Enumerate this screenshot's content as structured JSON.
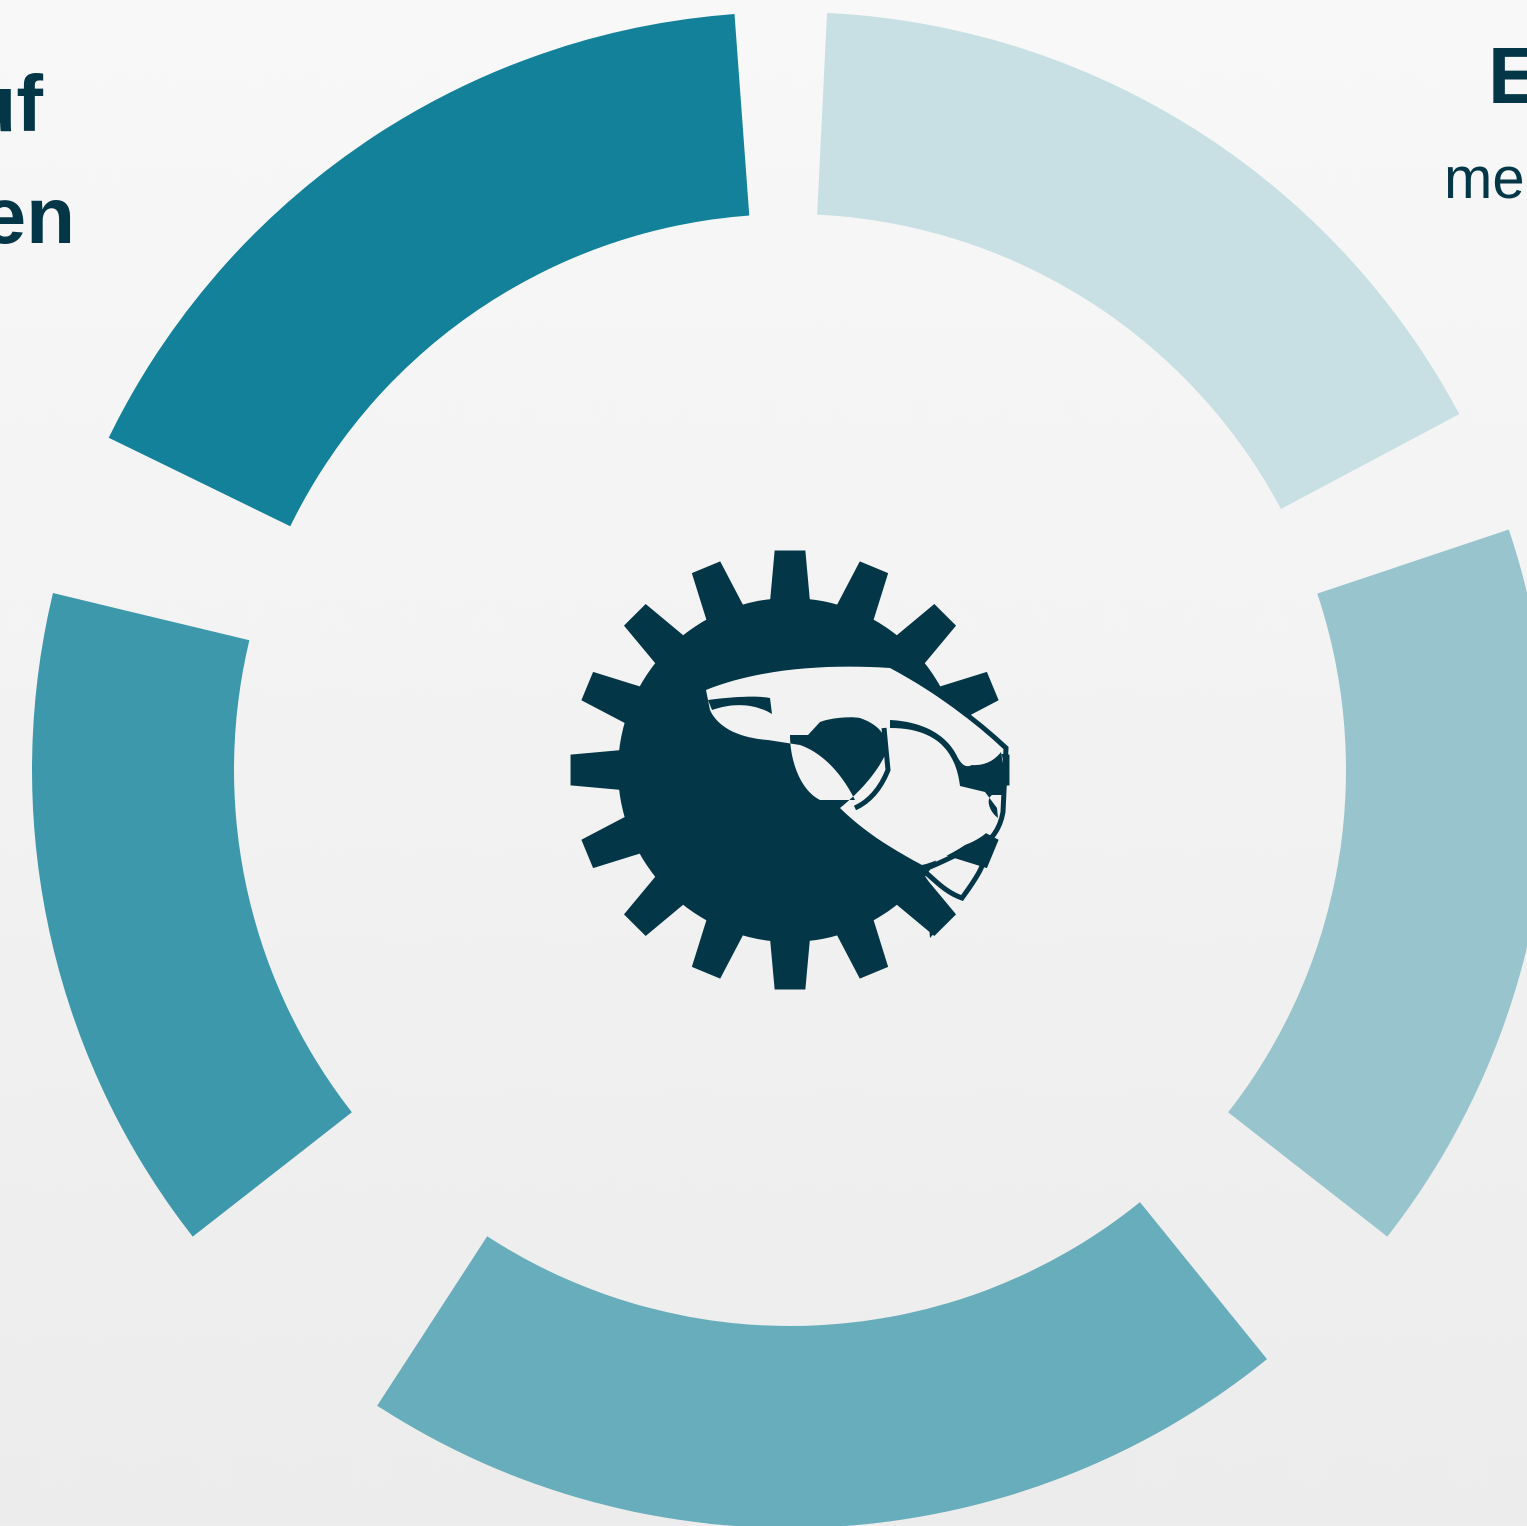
{
  "diagram": {
    "segments": [
      {
        "id": "top-left",
        "color": "#128199"
      },
      {
        "id": "top-right",
        "color": "#c8e0e4"
      },
      {
        "id": "right",
        "color": "#98c5cd"
      },
      {
        "id": "bottom",
        "color": "#68adbb"
      },
      {
        "id": "left",
        "color": "#3d98ab"
      }
    ],
    "center_logo": {
      "icon": "gear-lion-head-icon",
      "color": "#033646"
    }
  },
  "labels": {
    "left_line1": "uf",
    "left_line2": "en",
    "right_line1": "E",
    "right_line2": "me"
  }
}
